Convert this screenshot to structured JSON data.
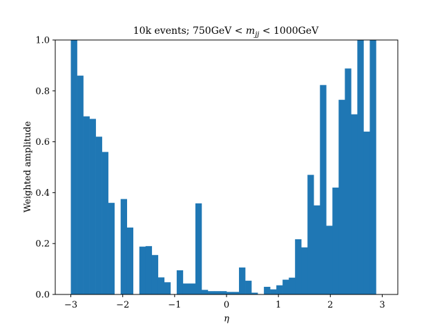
{
  "chart_data": {
    "type": "bar",
    "title_parts": {
      "prefix": "10k events; 750GeV < ",
      "var": "m",
      "sub": "jj",
      "suffix": " < 1000GeV"
    },
    "xlabel": "η",
    "ylabel": "Weighted amplitude",
    "xlim": [
      -3.3,
      3.3
    ],
    "ylim": [
      0,
      1.0
    ],
    "xticks": [
      -3,
      -2,
      -1,
      0,
      1,
      2,
      3
    ],
    "xtick_labels": [
      "−3",
      "−2",
      "−1",
      "0",
      "1",
      "2",
      "3"
    ],
    "yticks": [
      0.0,
      0.2,
      0.4,
      0.6,
      0.8,
      1.0
    ],
    "ytick_labels": [
      "0.0",
      "0.2",
      "0.4",
      "0.6",
      "0.8",
      "1.0"
    ],
    "bin_edges": [
      -3.0,
      3.0
    ],
    "bin_count": 50,
    "values": [
      1.0,
      0.86,
      0.7,
      0.69,
      0.62,
      0.56,
      0.36,
      0.0,
      0.375,
      0.263,
      0.0,
      0.188,
      0.19,
      0.155,
      0.067,
      0.048,
      0.0,
      0.095,
      0.043,
      0.043,
      0.358,
      0.018,
      0.013,
      0.013,
      0.013,
      0.01,
      0.01,
      0.106,
      0.054,
      0.007,
      0.0,
      0.03,
      0.02,
      0.036,
      0.058,
      0.066,
      0.217,
      0.185,
      0.47,
      0.35,
      0.823,
      0.27,
      0.42,
      0.765,
      0.888,
      0.708,
      1.0,
      0.64,
      1.0,
      0.0
    ],
    "bar_color": "#1f77b4",
    "grid": false
  }
}
